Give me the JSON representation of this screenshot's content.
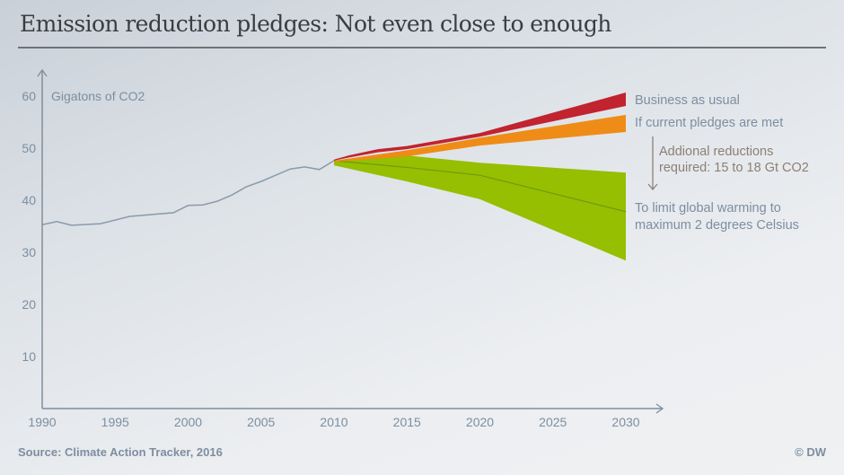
{
  "title": "Emission reduction pledges: Not even close to enough",
  "source": "Source: Climate Action Tracker, 2016",
  "copyright": "© DW",
  "chart_data": {
    "type": "area",
    "title": "Emission reduction pledges: Not even close to enough",
    "ylabel": "Gigatons of CO2",
    "xlabel": "",
    "xlim": [
      1990,
      2030
    ],
    "ylim": [
      0,
      65
    ],
    "x_ticks": [
      "1990",
      "1995",
      "2000",
      "2005",
      "2010",
      "2015",
      "2020",
      "2025",
      "2030"
    ],
    "y_ticks": [
      "10",
      "20",
      "30",
      "40",
      "50",
      "60"
    ],
    "grid": false,
    "colors": {
      "history": "#8a9aab",
      "business_as_usual": "#c1232f",
      "pledges": "#ef8c17",
      "two_degrees": "#95bf00",
      "two_degrees_line": "#6f9a10",
      "axis": "#7d8ea0",
      "reduction_note": "#8c8074"
    },
    "history": {
      "x": [
        1990,
        1991,
        1992,
        1994,
        1996,
        1999,
        2000,
        2001,
        2002,
        2003,
        2004,
        2005,
        2006,
        2007,
        2008,
        2009,
        2010
      ],
      "y": [
        35.3,
        35.9,
        35.2,
        35.5,
        36.9,
        37.6,
        39.0,
        39.1,
        39.8,
        41.0,
        42.6,
        43.6,
        44.8,
        46.0,
        46.4,
        45.9,
        47.6
      ]
    },
    "series": [
      {
        "name": "Business as usual",
        "x": [
          2010,
          2011,
          2013,
          2015,
          2020,
          2030
        ],
        "upper": [
          47.8,
          48.6,
          49.8,
          50.4,
          52.9,
          60.7
        ],
        "lower": [
          47.6,
          48.2,
          49.2,
          49.8,
          52.2,
          58.1
        ]
      },
      {
        "name": "If current pledges are met",
        "x": [
          2010,
          2015,
          2020,
          2030
        ],
        "upper": [
          47.6,
          49.6,
          52.0,
          56.4
        ],
        "lower": [
          47.4,
          48.4,
          50.5,
          53.1
        ]
      },
      {
        "name": "To limit global warming to maximum 2 degrees Celsius",
        "x": [
          2010,
          2015,
          2020,
          2030
        ],
        "upper": [
          47.6,
          48.6,
          47.2,
          45.3
        ],
        "lower": [
          46.7,
          43.6,
          40.2,
          28.4
        ],
        "mid": [
          47.6,
          46.3,
          44.8,
          37.8
        ]
      }
    ],
    "annotations": {
      "bau": "Business as usual",
      "pledges": "If current pledges are met",
      "reduction_line1": "Addional reductions",
      "reduction_line2": "required: 15 to 18 Gt CO2",
      "two_deg_line1": "To limit global warming to",
      "two_deg_line2": "maximum 2 degrees Celsius"
    }
  }
}
